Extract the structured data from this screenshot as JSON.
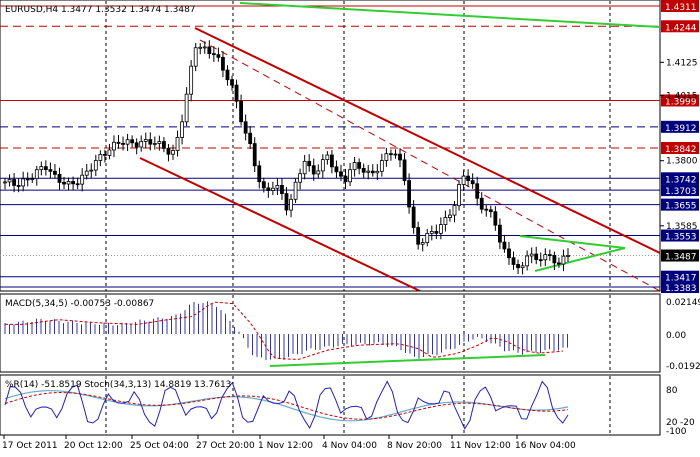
{
  "main_panel": {
    "symbol_info": "EURUSD,H4  1.3477 1.3532 1.3474 1.3487"
  },
  "macd_panel": {
    "title": "MACD(5,34,5) -0.00753 -0.00867",
    "levels": [
      "0.02149",
      "0.00",
      "-0.0192"
    ]
  },
  "stoch_panel": {
    "title": "%R(14) -51.8519  Stoch(34,3,13) 14.8819 13.7613",
    "levels": [
      "80",
      "20",
      "-20",
      "-100"
    ]
  },
  "price_scale": {
    "plain_labels": [
      {
        "text": "1.4125",
        "price": 1.4125
      },
      {
        "text": "1.4015",
        "price": 1.4015
      },
      {
        "text": "1.3800",
        "price": 1.38
      },
      {
        "text": "1.3585",
        "price": 1.3585
      }
    ],
    "level_labels": [
      {
        "text": "1.4311",
        "price": 1.4311,
        "color": "#c00000",
        "style": "solid"
      },
      {
        "text": "1.4244",
        "price": 1.4244,
        "color": "#c00000",
        "style": "dashed"
      },
      {
        "text": "1.3999",
        "price": 1.3999,
        "color": "#c00000",
        "style": "solid"
      },
      {
        "text": "1.3912",
        "price": 1.3912,
        "color": "#00007f",
        "style": "dashed"
      },
      {
        "text": "1.3842",
        "price": 1.3842,
        "color": "#c00000",
        "style": "dashed"
      },
      {
        "text": "1.3742",
        "price": 1.3742,
        "color": "#00007f",
        "style": "solid"
      },
      {
        "text": "1.3703",
        "price": 1.3703,
        "color": "#00007f",
        "style": "solid"
      },
      {
        "text": "1.3655",
        "price": 1.3655,
        "color": "#00007f",
        "style": "solid"
      },
      {
        "text": "1.3553",
        "price": 1.3553,
        "color": "#00007f",
        "style": "solid"
      },
      {
        "text": "1.3417",
        "price": 1.3417,
        "color": "#00007f",
        "style": "solid"
      },
      {
        "text": "1.3383",
        "price": 1.3383,
        "color": "#00007f",
        "style": "solid"
      }
    ],
    "current_price": {
      "text": "1.3487",
      "price": 1.3487
    }
  },
  "time_axis": [
    "17 Oct 2011",
    "20 Oct 12:00",
    "25 Oct 04:00",
    "27 Oct 20:00",
    "1 Nov 12:00",
    "4 Nov 04:00",
    "8 Nov 20:00",
    "11 Nov 12:00",
    "16 Nov 04:00"
  ],
  "colors": {
    "red": "#c00000",
    "blue": "#00007f",
    "green": "#33cc33",
    "candle": "#000000",
    "histogram": "#3333aa",
    "signal": "#cc0000",
    "stoch_main": "#66aacc",
    "percent_r": "#2222bb"
  }
}
